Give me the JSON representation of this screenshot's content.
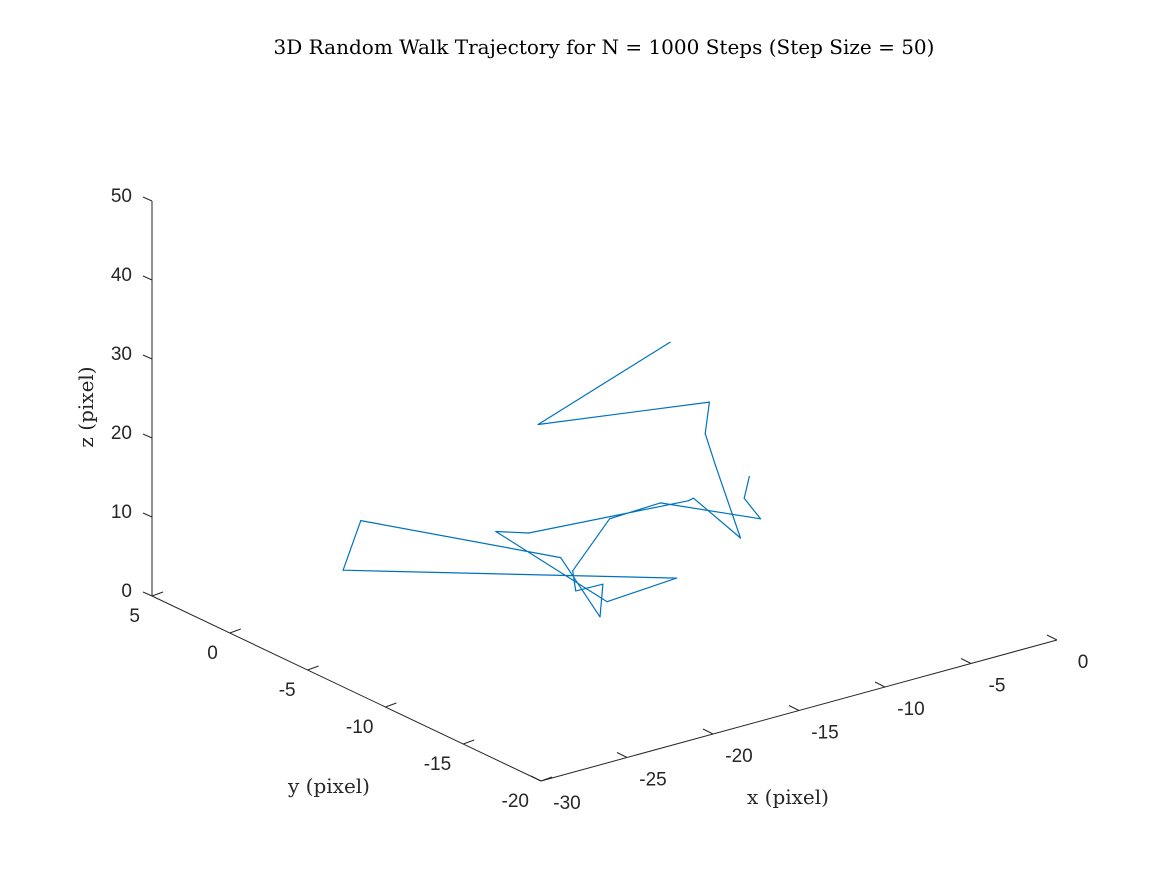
{
  "chart_data": {
    "type": "line",
    "projection": "3d",
    "title": "3D Random Walk Trajectory for N = 1000 Steps (Step Size = 50)",
    "xlabel": "x (pixel)",
    "ylabel": "y (pixel)",
    "zlabel": "z (pixel)",
    "xlim": [
      -30,
      0
    ],
    "ylim": [
      -20,
      5
    ],
    "zlim": [
      0,
      50
    ],
    "xticks": [
      -30,
      -25,
      -20,
      -15,
      -10,
      -5,
      0
    ],
    "yticks": [
      -20,
      -15,
      -10,
      -5,
      0,
      5
    ],
    "zticks": [
      0,
      10,
      20,
      30,
      40,
      50
    ],
    "grid": false,
    "series_color": "#0072BD",
    "series": [
      {
        "x": [
          -11.1,
          -14.7,
          -5.1,
          -7.7,
          -8.2,
          -9.9,
          -11.0,
          -11.4,
          -20.4,
          -21.5,
          -21.0,
          -16.6,
          -28.3,
          -24.1,
          -19.9,
          -20.6,
          -19.8,
          -21.2,
          -21.1,
          -15.7,
          -13.2,
          -10.0,
          -7.6,
          -4.5
        ],
        "y": [
          -7.4,
          -2.9,
          -3.3,
          -5.9,
          -7.1,
          -10.6,
          -8.8,
          -8.9,
          -8.6,
          -7.7,
          -14.3,
          -13.9,
          -5.4,
          -1.9,
          -10.1,
          -13.4,
          -12.7,
          -12.5,
          -12.2,
          -8.6,
          -9.1,
          -12.0,
          -8.3,
          -5.2
        ],
        "z": [
          32.5,
          20.0,
          17.5,
          17.5,
          15.0,
          10.0,
          14.0,
          14.0,
          15.0,
          15.0,
          12.0,
          12.0,
          12.0,
          12.5,
          13.0,
          9.0,
          12.0,
          11.8,
          14.0,
          14.0,
          15.0,
          13.8,
          11.5,
          9.5
        ]
      }
    ]
  }
}
